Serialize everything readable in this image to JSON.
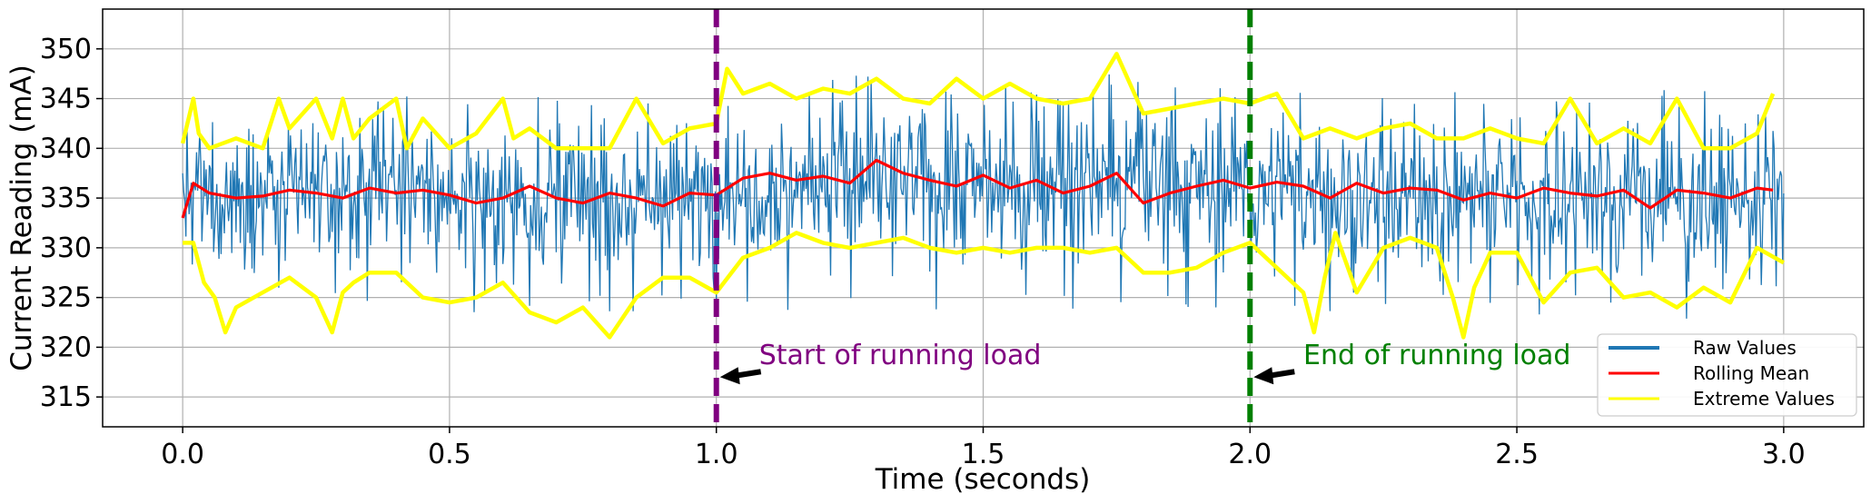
{
  "chart_data": {
    "type": "line",
    "title": "",
    "xlabel": "Time (seconds)",
    "ylabel": "Current Reading (mA)",
    "xlim": [
      -0.15,
      3.15
    ],
    "ylim": [
      312,
      354
    ],
    "grid": true,
    "x_ticks": [
      0.0,
      0.5,
      1.0,
      1.5,
      2.0,
      2.5,
      3.0
    ],
    "x_tick_labels": [
      "0.0",
      "0.5",
      "1.0",
      "1.5",
      "2.0",
      "2.5",
      "3.0"
    ],
    "y_ticks": [
      315,
      320,
      325,
      330,
      335,
      340,
      345,
      350
    ],
    "y_tick_labels": [
      "315",
      "320",
      "325",
      "330",
      "335",
      "340",
      "345",
      "350"
    ],
    "legend": {
      "position": "lower-right",
      "entries": [
        {
          "label": "Raw Values",
          "color": "#1f77b4"
        },
        {
          "label": "Rolling Mean",
          "color": "#ff0000"
        },
        {
          "label": "Extreme Values",
          "color": "#ffff00"
        }
      ]
    },
    "series": [
      {
        "name": "Raw Values",
        "color": "#1f77b4",
        "style": "noisy",
        "note": "dense sampled signal; x range 0.0–3.0 s; segment levels: 0–1 s mean≈335 range≈325–344, 1–2 s mean≈336 range≈329–348, 2–3 s mean≈335 range≈321–345",
        "segments": [
          {
            "x_start": 0.0,
            "x_end": 1.0,
            "mean": 335.2,
            "spread": 4.6
          },
          {
            "x_start": 1.0,
            "x_end": 2.0,
            "mean": 336.5,
            "spread": 5.0
          },
          {
            "x_start": 2.0,
            "x_end": 3.0,
            "mean": 335.3,
            "spread": 4.8
          }
        ]
      },
      {
        "name": "Rolling Mean",
        "color": "#ff0000",
        "x": [
          0.0,
          0.02,
          0.05,
          0.1,
          0.15,
          0.2,
          0.25,
          0.3,
          0.35,
          0.4,
          0.45,
          0.5,
          0.55,
          0.6,
          0.65,
          0.7,
          0.75,
          0.8,
          0.85,
          0.9,
          0.95,
          1.0,
          1.05,
          1.1,
          1.15,
          1.2,
          1.25,
          1.3,
          1.35,
          1.4,
          1.45,
          1.5,
          1.55,
          1.6,
          1.65,
          1.7,
          1.75,
          1.8,
          1.85,
          1.9,
          1.95,
          2.0,
          2.05,
          2.1,
          2.15,
          2.2,
          2.25,
          2.3,
          2.35,
          2.4,
          2.45,
          2.5,
          2.55,
          2.6,
          2.65,
          2.7,
          2.75,
          2.8,
          2.85,
          2.9,
          2.95,
          2.98
        ],
        "y": [
          333.0,
          336.5,
          335.5,
          335.0,
          335.2,
          335.8,
          335.5,
          335.0,
          336.0,
          335.5,
          335.8,
          335.3,
          334.5,
          335.0,
          336.2,
          335.0,
          334.5,
          335.5,
          335.0,
          334.2,
          335.5,
          335.3,
          337.0,
          337.5,
          336.8,
          337.2,
          336.5,
          338.8,
          337.5,
          336.8,
          336.2,
          337.3,
          336.0,
          336.8,
          335.5,
          336.2,
          337.5,
          334.5,
          335.5,
          336.2,
          336.8,
          336.0,
          336.6,
          336.2,
          335.0,
          336.5,
          335.5,
          336.0,
          335.8,
          334.8,
          335.5,
          335.0,
          336.0,
          335.5,
          335.2,
          335.8,
          334.0,
          335.8,
          335.5,
          335.0,
          336.0,
          335.8
        ]
      },
      {
        "name": "Extreme Values",
        "color": "#ffff00",
        "upper": {
          "x": [
            0.0,
            0.02,
            0.03,
            0.05,
            0.1,
            0.15,
            0.18,
            0.2,
            0.25,
            0.28,
            0.3,
            0.32,
            0.35,
            0.4,
            0.42,
            0.45,
            0.5,
            0.55,
            0.6,
            0.62,
            0.65,
            0.7,
            0.75,
            0.8,
            0.85,
            0.9,
            0.95,
            1.0,
            1.02,
            1.05,
            1.1,
            1.15,
            1.2,
            1.25,
            1.3,
            1.35,
            1.4,
            1.45,
            1.5,
            1.55,
            1.6,
            1.65,
            1.7,
            1.75,
            1.8,
            1.85,
            1.9,
            1.95,
            2.0,
            2.05,
            2.1,
            2.15,
            2.2,
            2.25,
            2.3,
            2.35,
            2.4,
            2.45,
            2.5,
            2.55,
            2.6,
            2.65,
            2.7,
            2.75,
            2.8,
            2.85,
            2.9,
            2.95,
            2.98
          ],
          "y": [
            340.5,
            345.0,
            341.5,
            340.0,
            341.0,
            340.0,
            345.0,
            342.0,
            345.0,
            341.0,
            345.0,
            341.0,
            343.0,
            345.0,
            340.0,
            343.0,
            340.0,
            341.5,
            345.0,
            341.0,
            342.0,
            340.0,
            340.0,
            340.0,
            345.0,
            340.5,
            342.0,
            342.5,
            348.0,
            345.5,
            346.5,
            345.0,
            346.0,
            345.5,
            347.0,
            345.0,
            344.5,
            347.0,
            345.0,
            346.5,
            345.0,
            344.5,
            345.0,
            349.5,
            343.5,
            344.0,
            344.5,
            345.0,
            344.5,
            345.5,
            341.0,
            342.0,
            341.0,
            342.0,
            342.5,
            341.0,
            341.0,
            342.0,
            341.0,
            340.5,
            345.0,
            340.5,
            342.0,
            340.5,
            345.0,
            340.0,
            340.0,
            341.5,
            345.5
          ]
        },
        "lower": {
          "x": [
            0.0,
            0.02,
            0.04,
            0.06,
            0.08,
            0.1,
            0.15,
            0.2,
            0.25,
            0.28,
            0.3,
            0.32,
            0.35,
            0.4,
            0.45,
            0.5,
            0.55,
            0.6,
            0.65,
            0.7,
            0.75,
            0.8,
            0.85,
            0.9,
            0.95,
            1.0,
            1.05,
            1.1,
            1.15,
            1.2,
            1.25,
            1.3,
            1.35,
            1.4,
            1.45,
            1.5,
            1.55,
            1.6,
            1.65,
            1.7,
            1.75,
            1.8,
            1.85,
            1.9,
            1.95,
            2.0,
            2.05,
            2.1,
            2.12,
            2.14,
            2.16,
            2.2,
            2.25,
            2.3,
            2.35,
            2.38,
            2.4,
            2.42,
            2.45,
            2.5,
            2.55,
            2.6,
            2.65,
            2.7,
            2.75,
            2.8,
            2.85,
            2.9,
            2.95,
            3.0
          ],
          "y": [
            330.5,
            330.5,
            326.5,
            325.0,
            321.5,
            324.0,
            325.5,
            327.0,
            325.0,
            321.5,
            325.5,
            326.5,
            327.5,
            327.5,
            325.0,
            324.5,
            325.0,
            326.5,
            323.5,
            322.5,
            324.0,
            321.0,
            325.0,
            327.0,
            327.0,
            325.5,
            329.0,
            330.0,
            331.5,
            330.5,
            330.0,
            330.5,
            331.0,
            330.0,
            329.5,
            330.0,
            329.5,
            330.0,
            330.0,
            329.5,
            330.0,
            327.5,
            327.5,
            328.0,
            329.5,
            330.5,
            328.0,
            325.5,
            321.5,
            327.0,
            331.5,
            325.5,
            330.0,
            331.0,
            330.0,
            325.0,
            321.0,
            326.0,
            329.5,
            329.5,
            324.5,
            327.5,
            328.0,
            325.0,
            325.5,
            324.0,
            326.0,
            324.5,
            330.0,
            328.5
          ]
        }
      }
    ],
    "vlines": [
      {
        "x": 1.0,
        "color": "#800080",
        "label": "Start of running load",
        "arrow_y": 317,
        "text_x": 1.08,
        "text_y": 318.3
      },
      {
        "x": 2.0,
        "color": "#008000",
        "label": "End of running load",
        "arrow_y": 317,
        "text_x": 2.1,
        "text_y": 318.3
      }
    ]
  }
}
